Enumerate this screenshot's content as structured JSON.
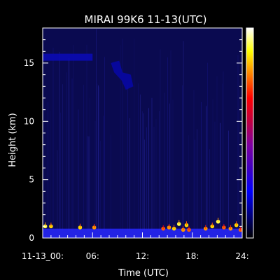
{
  "chart_data": {
    "type": "heatmap",
    "title": "MIRAI 99K6 11-13(UTC)",
    "xlabel": "Time (UTC)",
    "ylabel": "Height (km)",
    "x_ticks": [
      {
        "value": 0,
        "label": "11-13_00:"
      },
      {
        "value": 6,
        "label": "06:"
      },
      {
        "value": 12,
        "label": "12:"
      },
      {
        "value": 18,
        "label": "18:"
      },
      {
        "value": 24,
        "label": "24:"
      }
    ],
    "y_ticks": [
      {
        "value": 0,
        "label": "0"
      },
      {
        "value": 5,
        "label": "5"
      },
      {
        "value": 10,
        "label": "10"
      },
      {
        "value": 15,
        "label": "15"
      }
    ],
    "xlim": [
      0,
      24
    ],
    "ylim": [
      0,
      18
    ],
    "colorbar": {
      "placement": "right",
      "colors": [
        "#ffffff",
        "#ffff00",
        "#ff8000",
        "#ff0000",
        "#c00040",
        "#8000a0",
        "#4000c0",
        "#0000ff",
        "#000080",
        "#000000"
      ]
    },
    "features": [
      {
        "name": "background",
        "x": [
          0,
          24
        ],
        "y": [
          0,
          18
        ],
        "level": 0.08
      },
      {
        "name": "surface layer",
        "x": [
          0,
          24
        ],
        "y": [
          0,
          0.8
        ],
        "level": 0.45
      },
      {
        "name": "upper cloud band",
        "x": [
          0,
          6
        ],
        "y": [
          15.2,
          15.8
        ],
        "level": 0.3
      },
      {
        "name": "upper cloud patch",
        "x": [
          8,
          11
        ],
        "y": [
          12.7,
          15.2
        ],
        "level": 0.28
      },
      {
        "name": "vertical streaks",
        "x": [
          0,
          24
        ],
        "y": [
          0,
          18
        ],
        "level": 0.18
      }
    ],
    "hotspots": [
      {
        "x": 0.3,
        "y": 1.0,
        "level": 0.95
      },
      {
        "x": 1.0,
        "y": 1.0,
        "level": 0.9
      },
      {
        "x": 4.5,
        "y": 0.9,
        "level": 0.9
      },
      {
        "x": 6.2,
        "y": 0.9,
        "level": 0.85
      },
      {
        "x": 14.5,
        "y": 0.8,
        "level": 0.8
      },
      {
        "x": 15.2,
        "y": 0.9,
        "level": 0.85
      },
      {
        "x": 15.8,
        "y": 0.8,
        "level": 0.9
      },
      {
        "x": 16.4,
        "y": 1.2,
        "level": 0.95
      },
      {
        "x": 16.9,
        "y": 0.7,
        "level": 0.85
      },
      {
        "x": 17.3,
        "y": 1.1,
        "level": 0.9
      },
      {
        "x": 17.6,
        "y": 0.7,
        "level": 0.8
      },
      {
        "x": 19.6,
        "y": 0.8,
        "level": 0.85
      },
      {
        "x": 20.4,
        "y": 1.0,
        "level": 0.9
      },
      {
        "x": 21.1,
        "y": 1.4,
        "level": 0.95
      },
      {
        "x": 21.8,
        "y": 0.9,
        "level": 0.8
      },
      {
        "x": 22.6,
        "y": 0.8,
        "level": 0.85
      },
      {
        "x": 23.3,
        "y": 1.1,
        "level": 0.9
      },
      {
        "x": 23.8,
        "y": 0.7,
        "level": 0.8
      }
    ]
  }
}
